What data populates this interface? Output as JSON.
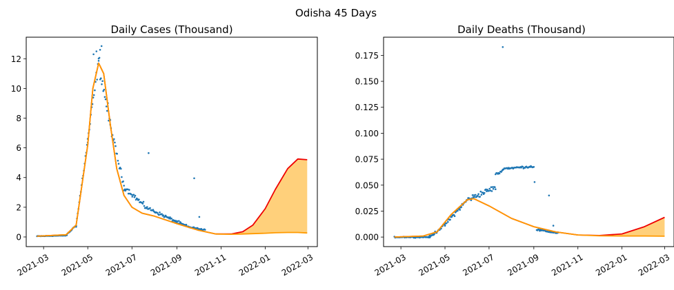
{
  "figure": {
    "suptitle": "Odisha 45 Days",
    "colors": {
      "scatter": "#1f77b4",
      "upper": "#ee0000",
      "lower": "#ff9a00",
      "fill": "#ffc864"
    }
  },
  "chart_data": [
    {
      "type": "scatter",
      "title": "Daily Cases (Thousand)",
      "xlabel": "",
      "ylabel": "",
      "xlim": [
        "2021-02-05",
        "2022-03-14"
      ],
      "ylim": [
        -0.65,
        13.45
      ],
      "xticks": [
        "2021-03",
        "2021-05",
        "2021-07",
        "2021-09",
        "2021-11",
        "2022-01",
        "2022-03"
      ],
      "yticks": [
        0,
        2,
        4,
        6,
        8,
        10,
        12
      ],
      "scatter_segments": [
        {
          "x": [
            "2021-02-20",
            "2021-04-01"
          ],
          "y": [
            0.05,
            0.1
          ],
          "n": 40,
          "noise": 0.03
        },
        {
          "x": [
            "2021-04-01",
            "2021-04-15"
          ],
          "y": [
            0.1,
            0.8
          ],
          "n": 14,
          "noise": 0.08
        },
        {
          "x": [
            "2021-04-15",
            "2021-05-01"
          ],
          "y": [
            0.8,
            6.5
          ],
          "n": 16,
          "noise": 0.35
        },
        {
          "x": [
            "2021-05-01",
            "2021-05-16"
          ],
          "y": [
            6.5,
            11.8
          ],
          "n": 15,
          "noise": 0.7
        },
        {
          "x": [
            "2021-05-16",
            "2021-06-01"
          ],
          "y": [
            11.8,
            7.5
          ],
          "n": 16,
          "noise": 0.9
        },
        {
          "x": [
            "2021-06-01",
            "2021-06-20"
          ],
          "y": [
            7.5,
            3.4
          ],
          "n": 19,
          "noise": 0.4
        },
        {
          "x": [
            "2021-06-20",
            "2021-07-20"
          ],
          "y": [
            3.4,
            2.0
          ],
          "n": 30,
          "noise": 0.25
        },
        {
          "x": [
            "2021-07-20",
            "2021-09-15"
          ],
          "y": [
            2.0,
            0.7
          ],
          "n": 57,
          "noise": 0.15
        },
        {
          "x": [
            "2021-09-15",
            "2021-10-10"
          ],
          "y": [
            0.7,
            0.45
          ],
          "n": 25,
          "noise": 0.08
        }
      ],
      "scatter_outliers": [
        {
          "x": "2021-05-09",
          "y": 12.3
        },
        {
          "x": "2021-05-13",
          "y": 12.5
        },
        {
          "x": "2021-05-18",
          "y": 12.6
        },
        {
          "x": "2021-05-20",
          "y": 12.85
        },
        {
          "x": "2021-07-24",
          "y": 5.65
        },
        {
          "x": "2021-09-25",
          "y": 3.95
        },
        {
          "x": "2021-10-02",
          "y": 1.35
        }
      ],
      "upper_curve": {
        "x": [
          "2021-02-20",
          "2021-04-01",
          "2021-04-15",
          "2021-05-01",
          "2021-05-08",
          "2021-05-16",
          "2021-05-23",
          "2021-06-01",
          "2021-06-10",
          "2021-06-20",
          "2021-07-01",
          "2021-07-15",
          "2021-08-01",
          "2021-09-01",
          "2021-10-01",
          "2021-10-25",
          "2021-11-15",
          "2021-12-01",
          "2021-12-15",
          "2022-01-01",
          "2022-01-15",
          "2022-02-01",
          "2022-02-15",
          "2022-02-28"
        ],
        "y": [
          0.05,
          0.15,
          0.8,
          6.2,
          10.0,
          11.7,
          11.0,
          7.6,
          4.6,
          2.8,
          2.0,
          1.6,
          1.4,
          0.9,
          0.45,
          0.2,
          0.2,
          0.35,
          0.8,
          1.9,
          3.2,
          4.6,
          5.25,
          5.2
        ]
      },
      "lower_curve": {
        "x": [
          "2021-02-20",
          "2021-04-01",
          "2021-04-15",
          "2021-05-01",
          "2021-05-08",
          "2021-05-16",
          "2021-05-23",
          "2021-06-01",
          "2021-06-10",
          "2021-06-20",
          "2021-07-01",
          "2021-07-15",
          "2021-08-01",
          "2021-09-01",
          "2021-10-01",
          "2021-10-25",
          "2021-11-15",
          "2021-12-01",
          "2021-12-15",
          "2022-01-01",
          "2022-01-15",
          "2022-02-01",
          "2022-02-15",
          "2022-02-28"
        ],
        "y": [
          0.05,
          0.15,
          0.8,
          6.2,
          10.0,
          11.7,
          11.0,
          7.6,
          4.6,
          2.8,
          2.0,
          1.6,
          1.4,
          0.9,
          0.45,
          0.2,
          0.18,
          0.2,
          0.22,
          0.25,
          0.28,
          0.3,
          0.3,
          0.27
        ]
      }
    },
    {
      "type": "scatter",
      "title": "Daily Deaths (Thousand)",
      "xlabel": "",
      "ylabel": "",
      "xlim": [
        "2021-02-05",
        "2022-03-14"
      ],
      "ylim": [
        -0.0092,
        0.1925
      ],
      "xticks": [
        "2021-03",
        "2021-05",
        "2021-07",
        "2021-09",
        "2021-11",
        "2022-01",
        "2022-03"
      ],
      "yticks": [
        "0.000",
        "0.025",
        "0.050",
        "0.075",
        "0.100",
        "0.125",
        "0.150",
        "0.175"
      ],
      "scatter_segments": [
        {
          "x": [
            "2021-02-20",
            "2021-04-10"
          ],
          "y": [
            0.0,
            0.0
          ],
          "n": 50,
          "noise": 0.0008
        },
        {
          "x": [
            "2021-04-10",
            "2021-05-01"
          ],
          "y": [
            0.0,
            0.012
          ],
          "n": 21,
          "noise": 0.002
        },
        {
          "x": [
            "2021-05-01",
            "2021-06-01"
          ],
          "y": [
            0.012,
            0.036
          ],
          "n": 31,
          "noise": 0.003
        },
        {
          "x": [
            "2021-06-01",
            "2021-07-10"
          ],
          "y": [
            0.036,
            0.048
          ],
          "n": 39,
          "noise": 0.004
        },
        {
          "x": [
            "2021-07-10",
            "2021-07-20"
          ],
          "y": [
            0.06,
            0.064
          ],
          "n": 10,
          "noise": 0.002
        },
        {
          "x": [
            "2021-07-20",
            "2021-09-01"
          ],
          "y": [
            0.066,
            0.068
          ],
          "n": 43,
          "noise": 0.0015
        },
        {
          "x": [
            "2021-09-05",
            "2021-10-05"
          ],
          "y": [
            0.007,
            0.004
          ],
          "n": 30,
          "noise": 0.0015
        }
      ],
      "scatter_outliers": [
        {
          "x": "2021-07-20",
          "y": 0.183
        },
        {
          "x": "2021-09-02",
          "y": 0.053
        },
        {
          "x": "2021-09-22",
          "y": 0.04
        },
        {
          "x": "2021-09-28",
          "y": 0.011
        }
      ],
      "upper_curve": {
        "x": [
          "2021-02-20",
          "2021-04-01",
          "2021-04-20",
          "2021-05-10",
          "2021-06-01",
          "2021-06-10",
          "2021-07-01",
          "2021-08-01",
          "2021-09-01",
          "2021-10-01",
          "2021-11-01",
          "2021-12-01",
          "2022-01-01",
          "2022-02-01",
          "2022-03-01"
        ],
        "y": [
          0.0,
          0.001,
          0.005,
          0.022,
          0.036,
          0.037,
          0.03,
          0.018,
          0.01,
          0.005,
          0.002,
          0.0015,
          0.003,
          0.01,
          0.019
        ]
      },
      "lower_curve": {
        "x": [
          "2021-02-20",
          "2021-04-01",
          "2021-04-20",
          "2021-05-10",
          "2021-06-01",
          "2021-06-10",
          "2021-07-01",
          "2021-08-01",
          "2021-09-01",
          "2021-10-01",
          "2021-11-01",
          "2021-12-01",
          "2022-01-01",
          "2022-02-01",
          "2022-03-01"
        ],
        "y": [
          0.0,
          0.001,
          0.005,
          0.022,
          0.036,
          0.037,
          0.03,
          0.018,
          0.01,
          0.005,
          0.002,
          0.0012,
          0.001,
          0.001,
          0.0008
        ]
      }
    }
  ]
}
